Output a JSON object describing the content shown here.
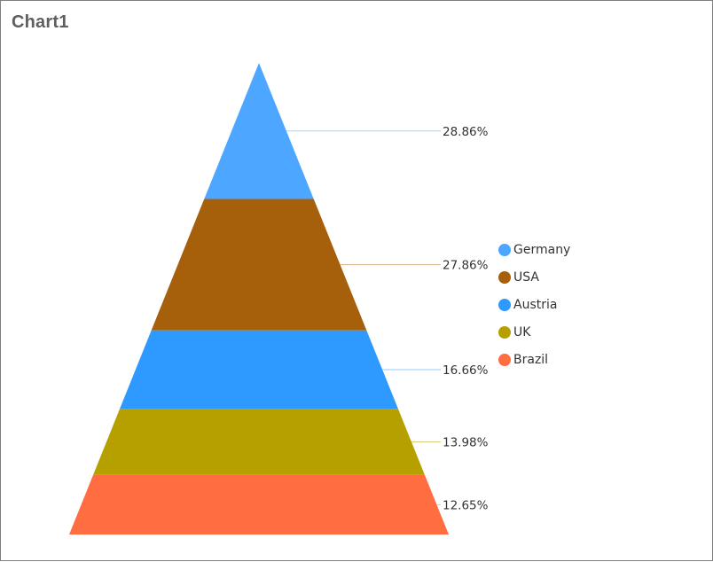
{
  "window": {
    "title": "Chart1"
  },
  "chart_data": {
    "type": "pyramid",
    "title": "Chart1",
    "categories": [
      "Germany",
      "USA",
      "Austria",
      "UK",
      "Brazil"
    ],
    "values": [
      28.86,
      27.86,
      16.66,
      13.98,
      12.65
    ],
    "value_labels": [
      "28.86%",
      "27.86%",
      "16.66%",
      "13.98%",
      "12.65%"
    ],
    "unit": "%",
    "colors": [
      "#4da6ff",
      "#a65f0a",
      "#2e9aff",
      "#b5a000",
      "#ff6d40"
    ],
    "xlabel": "",
    "ylabel": "",
    "grid": false,
    "legend_position": "right",
    "data_labels_position": "outside-right-with-leader-lines"
  },
  "legend": {
    "items": [
      {
        "label": "Germany",
        "color": "#4da6ff"
      },
      {
        "label": "USA",
        "color": "#a65f0a"
      },
      {
        "label": "Austria",
        "color": "#2e9aff"
      },
      {
        "label": "UK",
        "color": "#b5a000"
      },
      {
        "label": "Brazil",
        "color": "#ff6d40"
      }
    ]
  }
}
